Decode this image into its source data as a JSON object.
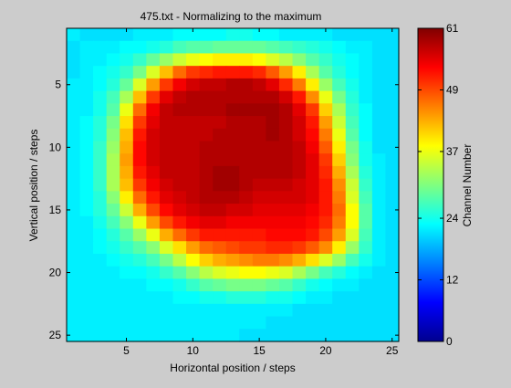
{
  "window": {
    "background": "#cccccc"
  },
  "chart_data": {
    "type": "heatmap",
    "title": "475.txt - Normalizing to the maximum",
    "xlabel": "Horizontal position / steps",
    "ylabel": "Vertical position / steps",
    "colorbar_label": "Channel Number",
    "colormap": "jet",
    "clim": [
      0,
      61
    ],
    "x_range": [
      1,
      25
    ],
    "y_range": [
      1,
      25
    ],
    "y_direction": "reversed",
    "x_ticks": [
      5,
      10,
      15,
      20,
      25
    ],
    "y_ticks": [
      5,
      10,
      15,
      20,
      25
    ],
    "colorbar_ticks": [
      0,
      12,
      24,
      37,
      49,
      61
    ],
    "grid": false,
    "values": [
      [
        22,
        21,
        21,
        21,
        21,
        22,
        22,
        22,
        23,
        23,
        23,
        23,
        24,
        24,
        23,
        23,
        22,
        22,
        22,
        22,
        21,
        21,
        21,
        21,
        21
      ],
      [
        21,
        22,
        22,
        22,
        23,
        23,
        24,
        25,
        27,
        28,
        28,
        29,
        29,
        29,
        29,
        28,
        27,
        26,
        25,
        24,
        23,
        22,
        22,
        21,
        21
      ],
      [
        21,
        22,
        22,
        23,
        24,
        26,
        29,
        32,
        35,
        37,
        38,
        39,
        39,
        39,
        38,
        36,
        34,
        31,
        28,
        26,
        24,
        23,
        22,
        21,
        21
      ],
      [
        21,
        22,
        23,
        24,
        26,
        30,
        36,
        42,
        47,
        50,
        51,
        52,
        52,
        52,
        51,
        48,
        44,
        39,
        33,
        28,
        25,
        23,
        22,
        21,
        21
      ],
      [
        22,
        22,
        23,
        25,
        29,
        36,
        44,
        50,
        54,
        56,
        57,
        57,
        58,
        58,
        57,
        55,
        51,
        46,
        39,
        32,
        27,
        24,
        22,
        21,
        21
      ],
      [
        22,
        22,
        24,
        27,
        33,
        42,
        50,
        55,
        57,
        58,
        58,
        58,
        58,
        58,
        58,
        58,
        56,
        52,
        45,
        37,
        30,
        25,
        22,
        21,
        21
      ],
      [
        22,
        22,
        24,
        28,
        37,
        47,
        54,
        57,
        58,
        58,
        58,
        58,
        59,
        59,
        59,
        59,
        58,
        55,
        50,
        41,
        33,
        26,
        23,
        21,
        21
      ],
      [
        22,
        23,
        25,
        30,
        40,
        50,
        55,
        57,
        57,
        57,
        57,
        57,
        58,
        58,
        58,
        59,
        58,
        56,
        52,
        44,
        35,
        27,
        23,
        21,
        21
      ],
      [
        22,
        23,
        25,
        31,
        42,
        52,
        56,
        57,
        57,
        57,
        57,
        58,
        58,
        58,
        58,
        59,
        58,
        56,
        53,
        46,
        37,
        28,
        23,
        21,
        21
      ],
      [
        22,
        23,
        26,
        32,
        43,
        53,
        56,
        57,
        57,
        57,
        58,
        58,
        58,
        58,
        58,
        58,
        58,
        57,
        54,
        48,
        39,
        30,
        24,
        21,
        21
      ],
      [
        22,
        23,
        26,
        33,
        44,
        53,
        56,
        57,
        57,
        57,
        58,
        58,
        58,
        58,
        58,
        58,
        58,
        57,
        55,
        50,
        41,
        31,
        24,
        22,
        21
      ],
      [
        22,
        23,
        26,
        33,
        43,
        52,
        55,
        57,
        57,
        57,
        58,
        59,
        59,
        58,
        58,
        58,
        58,
        57,
        55,
        51,
        43,
        33,
        25,
        22,
        21
      ],
      [
        22,
        23,
        26,
        33,
        42,
        50,
        54,
        56,
        57,
        57,
        58,
        59,
        59,
        58,
        57,
        57,
        57,
        56,
        55,
        52,
        45,
        35,
        26,
        22,
        21
      ],
      [
        22,
        23,
        25,
        31,
        39,
        47,
        52,
        55,
        56,
        57,
        58,
        58,
        58,
        57,
        56,
        56,
        56,
        56,
        55,
        52,
        46,
        36,
        27,
        22,
        21
      ],
      [
        22,
        23,
        25,
        29,
        35,
        43,
        49,
        53,
        55,
        56,
        57,
        57,
        56,
        56,
        55,
        55,
        55,
        55,
        54,
        52,
        47,
        38,
        28,
        22,
        21
      ],
      [
        22,
        22,
        24,
        27,
        31,
        37,
        44,
        49,
        52,
        54,
        55,
        55,
        54,
        54,
        54,
        54,
        54,
        54,
        53,
        51,
        46,
        38,
        28,
        22,
        21
      ],
      [
        22,
        22,
        23,
        25,
        28,
        32,
        37,
        43,
        47,
        50,
        52,
        52,
        52,
        52,
        52,
        53,
        53,
        53,
        52,
        49,
        44,
        36,
        27,
        22,
        21
      ],
      [
        22,
        22,
        23,
        24,
        26,
        28,
        31,
        36,
        40,
        44,
        47,
        48,
        49,
        50,
        50,
        51,
        51,
        50,
        48,
        45,
        39,
        32,
        26,
        22,
        21
      ],
      [
        22,
        22,
        22,
        23,
        24,
        25,
        27,
        30,
        34,
        38,
        41,
        43,
        44,
        45,
        46,
        46,
        45,
        43,
        40,
        36,
        32,
        27,
        24,
        22,
        21
      ],
      [
        22,
        22,
        22,
        22,
        23,
        23,
        24,
        26,
        28,
        31,
        34,
        36,
        37,
        38,
        38,
        37,
        36,
        33,
        30,
        27,
        25,
        23,
        22,
        21,
        21
      ],
      [
        22,
        22,
        22,
        22,
        22,
        22,
        23,
        23,
        24,
        26,
        28,
        29,
        30,
        30,
        30,
        29,
        28,
        26,
        24,
        23,
        22,
        22,
        21,
        21,
        21
      ],
      [
        22,
        22,
        22,
        22,
        22,
        22,
        22,
        22,
        23,
        23,
        24,
        24,
        25,
        25,
        25,
        24,
        24,
        23,
        22,
        22,
        21,
        21,
        21,
        21,
        21
      ],
      [
        22,
        22,
        22,
        22,
        22,
        22,
        22,
        22,
        22,
        22,
        22,
        22,
        22,
        22,
        22,
        22,
        22,
        21,
        21,
        21,
        21,
        21,
        21,
        21,
        21
      ],
      [
        22,
        22,
        22,
        22,
        22,
        22,
        22,
        22,
        22,
        22,
        22,
        22,
        22,
        22,
        22,
        21,
        21,
        21,
        21,
        21,
        21,
        21,
        21,
        21,
        21
      ],
      [
        22,
        22,
        22,
        22,
        22,
        22,
        22,
        22,
        22,
        22,
        22,
        22,
        22,
        21,
        21,
        21,
        21,
        21,
        21,
        21,
        21,
        21,
        21,
        21,
        21
      ]
    ]
  }
}
